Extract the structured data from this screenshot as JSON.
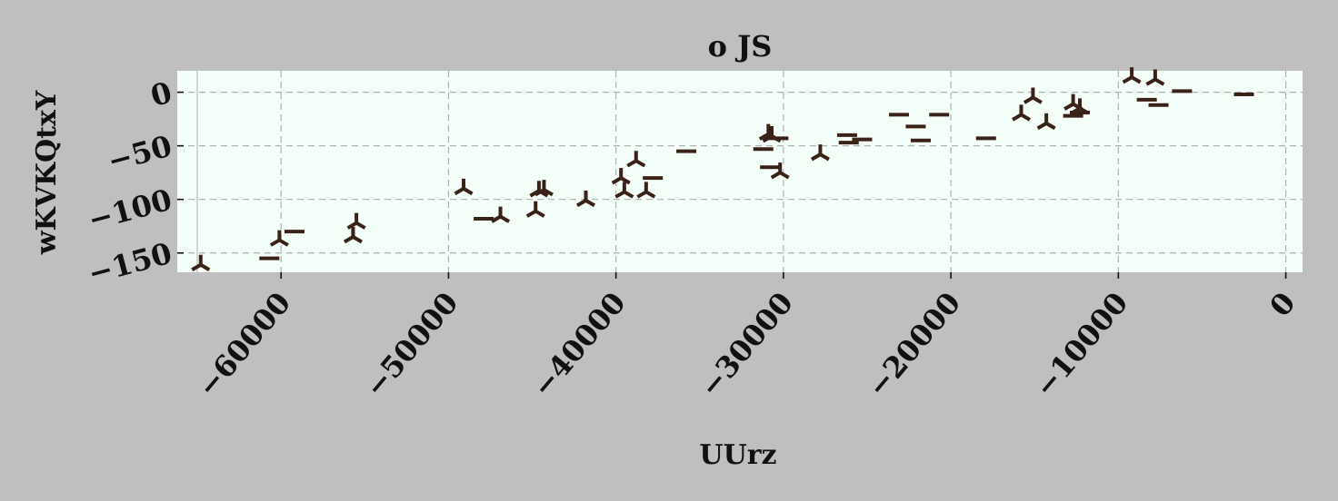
{
  "chart_data": {
    "type": "scatter",
    "title": "o JS",
    "xlabel": "UUrz",
    "ylabel": "wKVKQtxY",
    "xlim": [
      -66200,
      1000
    ],
    "ylim": [
      -168,
      20
    ],
    "xticks": [
      -60000,
      -50000,
      -40000,
      -30000,
      -20000,
      -10000,
      0
    ],
    "xtick_labels": [
      "−60000",
      "−50000",
      "−40000",
      "−30000",
      "−20000",
      "−10000",
      "0"
    ],
    "yticks": [
      0,
      -50,
      -100,
      -150
    ],
    "ytick_labels": [
      "0",
      "−50",
      "−100",
      "−150"
    ],
    "grid": true,
    "legend": "none",
    "colors": {
      "figure_bg": "#bfbfbf",
      "plot_bg": "#f5fff9",
      "marker": "#3a2218",
      "grid": "#b0b0b0"
    },
    "series": [
      {
        "marker": "tri_down",
        "points": [
          [
            -64800,
            -161
          ],
          [
            -60100,
            -138
          ],
          [
            -55700,
            -135
          ],
          [
            -55500,
            -122
          ],
          [
            -49100,
            -90
          ],
          [
            -46900,
            -116
          ],
          [
            -44800,
            -111
          ],
          [
            -44600,
            -92
          ],
          [
            -44300,
            -91
          ],
          [
            -41800,
            -101
          ],
          [
            -39700,
            -80
          ],
          [
            -39500,
            -93
          ],
          [
            -38800,
            -64
          ],
          [
            -38200,
            -93
          ],
          [
            -30900,
            -39
          ],
          [
            -30700,
            -41
          ],
          [
            -30200,
            -75
          ],
          [
            -27800,
            -58
          ],
          [
            -15800,
            -21
          ],
          [
            -15100,
            -5
          ],
          [
            -14300,
            -29
          ],
          [
            -12700,
            -11
          ],
          [
            -12300,
            -15
          ],
          [
            -9200,
            14
          ],
          [
            -7800,
            12
          ]
        ]
      },
      {
        "marker": "hline",
        "points": [
          [
            -60700,
            -155
          ],
          [
            -59200,
            -130
          ],
          [
            -47900,
            -118
          ],
          [
            -37800,
            -80
          ],
          [
            -35800,
            -55
          ],
          [
            -31200,
            -53
          ],
          [
            -30800,
            -70
          ],
          [
            -30300,
            -43
          ],
          [
            -26200,
            -40
          ],
          [
            -26100,
            -47
          ],
          [
            -25300,
            -44
          ],
          [
            -23100,
            -21
          ],
          [
            -22100,
            -32
          ],
          [
            -21800,
            -45
          ],
          [
            -20700,
            -21
          ],
          [
            -17900,
            -43
          ],
          [
            -12700,
            -22
          ],
          [
            -12300,
            -19
          ],
          [
            -8300,
            -7
          ],
          [
            -7600,
            -12
          ],
          [
            -6200,
            1
          ],
          [
            -2500,
            -2
          ]
        ]
      }
    ]
  }
}
